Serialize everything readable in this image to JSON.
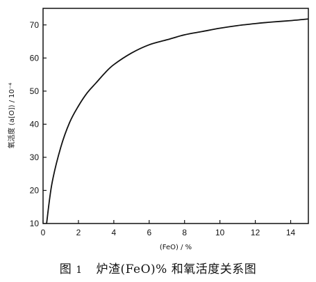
{
  "chart_data": {
    "type": "line",
    "xlabel": "(FeO) / %",
    "ylabel": "氧活度 (a[O]) / 10⁻⁴",
    "xlim": [
      0,
      15
    ],
    "ylim": [
      10,
      75
    ],
    "xticks": [
      "0",
      "2",
      "4",
      "6",
      "8",
      "10",
      "12",
      "14"
    ],
    "yticks": [
      "10",
      "20",
      "30",
      "40",
      "50",
      "60",
      "70"
    ],
    "grid": false,
    "series": [
      {
        "x": [
          0.2,
          0.5,
          1.0,
          1.5,
          2.0,
          2.5,
          3.0,
          3.5,
          4.0,
          5.0,
          6.0,
          7.0,
          8.0,
          9.0,
          10.0,
          11.0,
          12.0,
          13.0,
          14.0,
          15.0
        ],
        "y": [
          10,
          22,
          33,
          40.5,
          45.5,
          49.5,
          52.5,
          55.5,
          58,
          61.5,
          64,
          65.5,
          67,
          68,
          69,
          69.8,
          70.4,
          70.9,
          71.3,
          71.8
        ]
      }
    ]
  },
  "caption": {
    "fig_label": "图",
    "fig_number": "1",
    "text": "炉渣(FeO)% 和氧活度关系图"
  }
}
